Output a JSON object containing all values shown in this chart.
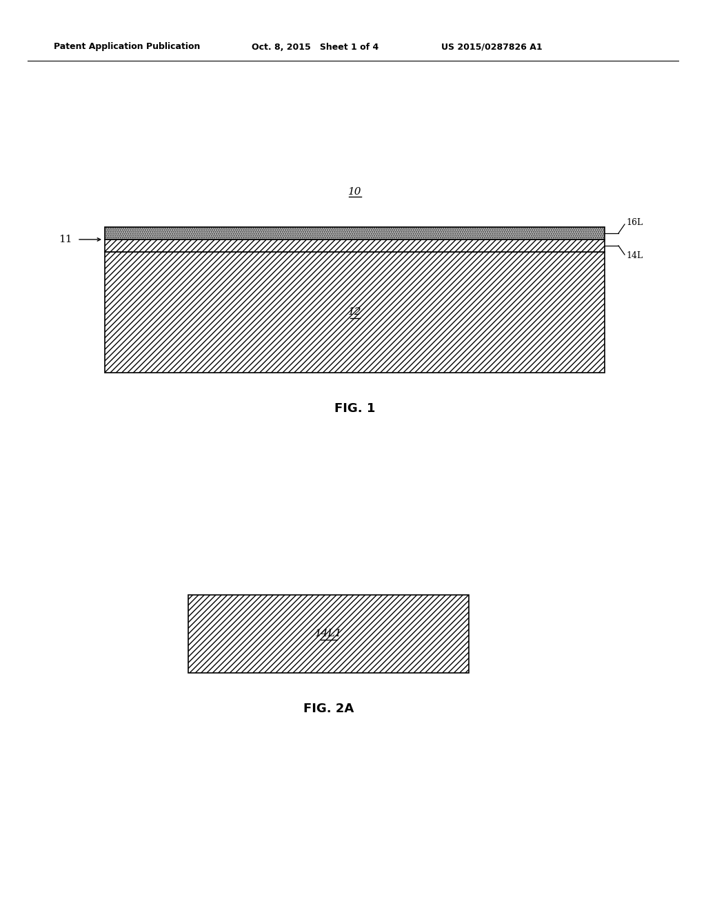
{
  "header_left": "Patent Application Publication",
  "header_mid": "Oct. 8, 2015   Sheet 1 of 4",
  "header_right": "US 2015/0287826 A1",
  "fig1_label": "FIG. 1",
  "fig2a_label": "FIG. 2A",
  "label_10": "10",
  "label_11": "11",
  "label_12": "12",
  "label_14L": "14L",
  "label_16L": "16L",
  "label_14L1": "14L1",
  "bg_color": "#ffffff",
  "line_color": "#000000",
  "header_fontsize": 9,
  "label_fontsize": 11,
  "fig_label_fontsize": 13
}
